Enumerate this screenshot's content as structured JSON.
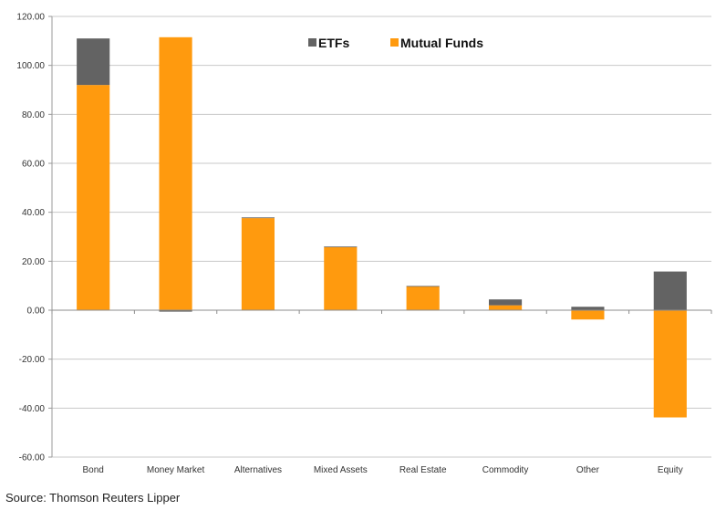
{
  "chart_data": {
    "type": "bar",
    "stacked": true,
    "categories": [
      "Bond",
      "Money Market",
      "Alternatives",
      "Mixed Assets",
      "Real Estate",
      "Commodity",
      "Other",
      "Equity"
    ],
    "series": [
      {
        "name": "ETFs",
        "color": "#636363",
        "values": [
          19.0,
          -0.6,
          0.3,
          0.2,
          0.1,
          2.4,
          1.4,
          15.8
        ]
      },
      {
        "name": "Mutual Funds",
        "color": "#ff9a0e",
        "values": [
          92.0,
          111.5,
          37.6,
          25.8,
          9.8,
          2.0,
          -3.8,
          -43.8
        ]
      }
    ],
    "y_ticks": [
      "120.00",
      "100.00",
      "80.00",
      "60.00",
      "40.00",
      "20.00",
      "0.00",
      "-20.00",
      "-40.00",
      "-60.00"
    ],
    "ylim": [
      -60,
      120
    ],
    "grid": true,
    "legend_position": "top-center"
  },
  "source_text": "Source: Thomson Reuters Lipper"
}
